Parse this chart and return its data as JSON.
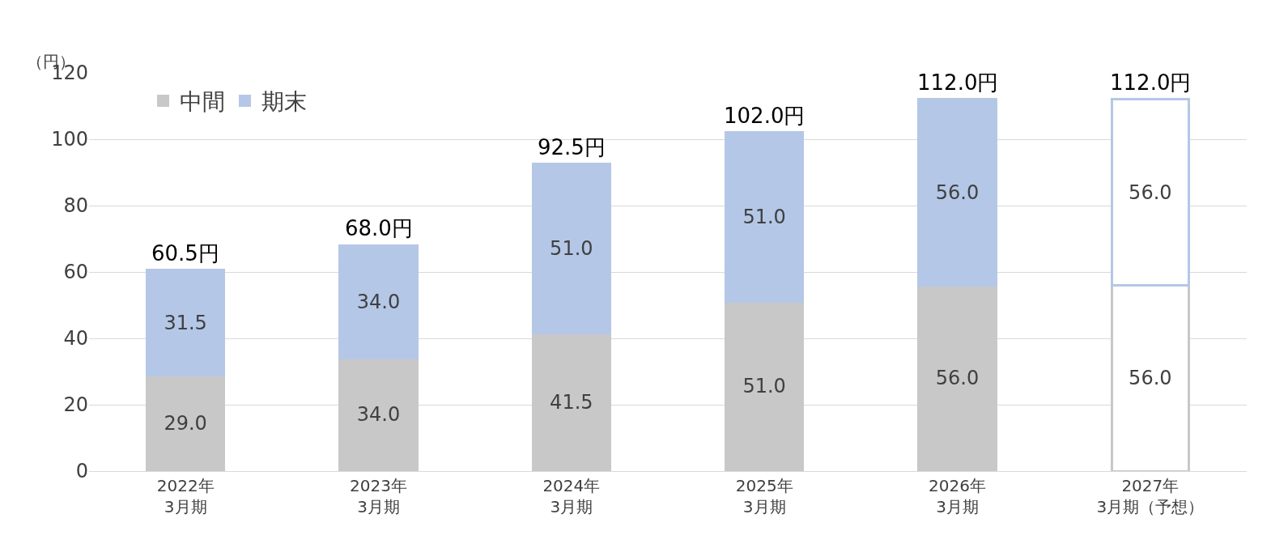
{
  "chart_data": {
    "type": "bar",
    "stacked": true,
    "ylabel": "（円）",
    "categories": [
      "2022年\n3月期",
      "2023年\n3月期",
      "2024年\n3月期",
      "2025年\n3月期",
      "2026年\n3月期",
      "2027年\n3月期（予想）"
    ],
    "series": [
      {
        "name": "中間",
        "color": "#c8c8c8",
        "colors": [
          "#c8c8c8",
          "#c8c8c8",
          "#c8c8c8",
          "#c8c8c8",
          "#c8c8c8",
          "#ffffff"
        ],
        "values": [
          29.0,
          34.0,
          41.5,
          51.0,
          56.0,
          56.0
        ],
        "value_labels": [
          "29.0",
          "34.0",
          "41.5",
          "51.0",
          "56.0",
          "56.0"
        ]
      },
      {
        "name": "期末",
        "color": "#b4c7e7",
        "colors": [
          "#b4c7e7",
          "#b4c7e7",
          "#b4c7e7",
          "#b4c7e7",
          "#b4c7e7",
          "#ffffff"
        ],
        "values": [
          31.5,
          34.0,
          51.0,
          51.0,
          56.0,
          56.0
        ],
        "value_labels": [
          "31.5",
          "34.0",
          "51.0",
          "51.0",
          "56.0",
          "56.0"
        ]
      }
    ],
    "totals": [
      "60.5円",
      "68.0円",
      "92.5円",
      "102.0円",
      "112.0円",
      "112.0円"
    ],
    "ylim": [
      0,
      120
    ],
    "yticks": [
      0,
      20,
      40,
      60,
      80,
      100,
      120
    ],
    "grid": "y",
    "legend": "top left"
  }
}
